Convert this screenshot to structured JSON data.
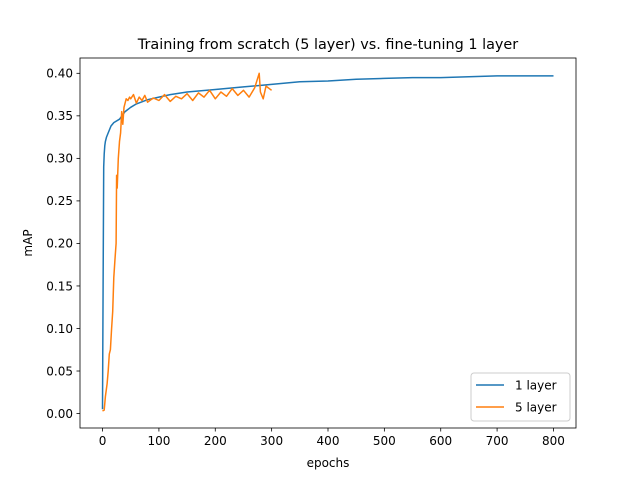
{
  "chart_data": {
    "type": "line",
    "title": "Training from scratch (5 layer) vs. fine-tuning 1 layer",
    "xlabel": "epochs",
    "ylabel": "mAP",
    "xlim": [
      -40,
      840
    ],
    "ylim": [
      -0.017,
      0.418
    ],
    "xticks": [
      0,
      100,
      200,
      300,
      400,
      500,
      600,
      700,
      800
    ],
    "yticks": [
      0.0,
      0.05,
      0.1,
      0.15,
      0.2,
      0.25,
      0.3,
      0.35,
      0.4
    ],
    "ytick_labels": [
      "0.00",
      "0.05",
      "0.10",
      "0.15",
      "0.20",
      "0.25",
      "0.30",
      "0.35",
      "0.40"
    ],
    "grid": false,
    "legend_position": "lower-right",
    "series": [
      {
        "name": "1 layer",
        "color": "#1f77b4",
        "x": [
          0,
          1,
          2,
          3,
          4,
          5,
          7,
          10,
          15,
          20,
          30,
          40,
          50,
          60,
          80,
          100,
          120,
          150,
          200,
          250,
          300,
          350,
          400,
          450,
          500,
          550,
          600,
          650,
          700,
          750,
          800
        ],
        "y": [
          0.005,
          0.15,
          0.29,
          0.305,
          0.315,
          0.32,
          0.325,
          0.33,
          0.338,
          0.342,
          0.346,
          0.355,
          0.36,
          0.364,
          0.369,
          0.372,
          0.375,
          0.378,
          0.381,
          0.384,
          0.387,
          0.39,
          0.391,
          0.393,
          0.394,
          0.395,
          0.395,
          0.396,
          0.397,
          0.397,
          0.397
        ]
      },
      {
        "name": "5 layer",
        "color": "#ff7f0e",
        "x": [
          0,
          3,
          5,
          8,
          10,
          12,
          14,
          16,
          18,
          20,
          22,
          24,
          25,
          26,
          28,
          30,
          32,
          34,
          36,
          38,
          40,
          42,
          45,
          48,
          50,
          55,
          60,
          65,
          70,
          75,
          80,
          90,
          100,
          110,
          120,
          130,
          140,
          150,
          160,
          170,
          180,
          190,
          200,
          210,
          220,
          230,
          240,
          250,
          260,
          270,
          278,
          280,
          285,
          290,
          300
        ],
        "y": [
          0.003,
          0.004,
          0.02,
          0.035,
          0.05,
          0.07,
          0.075,
          0.1,
          0.12,
          0.16,
          0.18,
          0.2,
          0.28,
          0.265,
          0.3,
          0.32,
          0.33,
          0.355,
          0.34,
          0.36,
          0.365,
          0.37,
          0.368,
          0.372,
          0.37,
          0.375,
          0.365,
          0.372,
          0.368,
          0.374,
          0.366,
          0.371,
          0.368,
          0.375,
          0.367,
          0.373,
          0.37,
          0.376,
          0.368,
          0.377,
          0.372,
          0.38,
          0.37,
          0.378,
          0.373,
          0.382,
          0.374,
          0.38,
          0.372,
          0.383,
          0.4,
          0.378,
          0.37,
          0.385,
          0.38
        ]
      }
    ]
  }
}
